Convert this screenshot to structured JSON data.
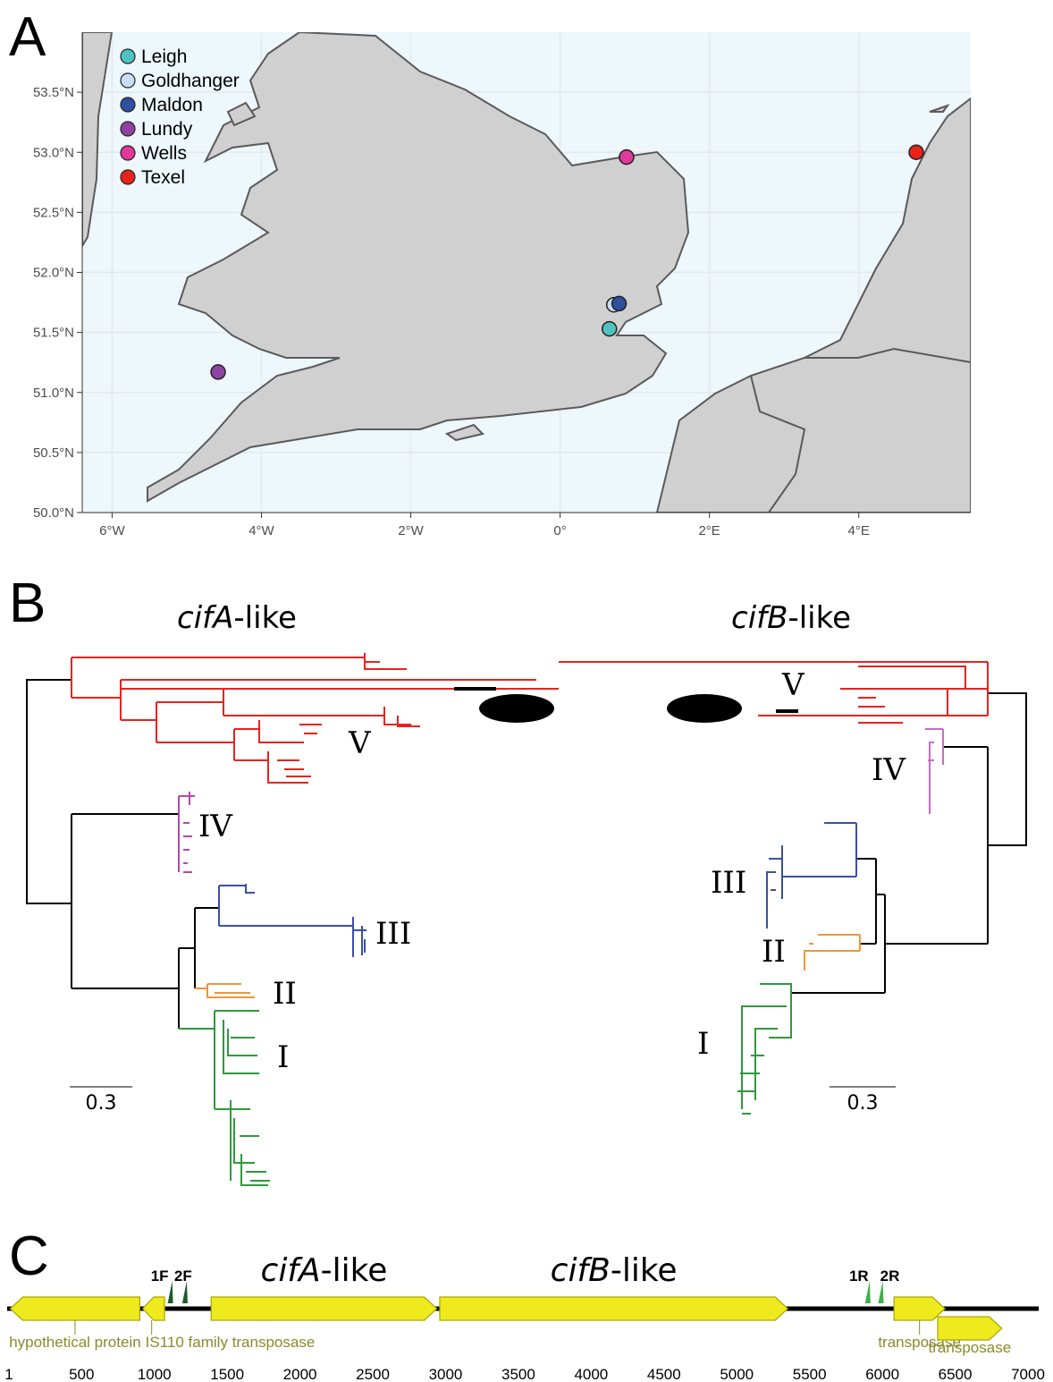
{
  "panel_a": {
    "label": "A",
    "xlim": [
      -6.4,
      5.5
    ],
    "ylim": [
      50,
      54
    ],
    "xticks": [
      {
        "value": -6,
        "label": "6°W"
      },
      {
        "value": -4,
        "label": "4°W"
      },
      {
        "value": -2,
        "label": "2°W"
      },
      {
        "value": 0,
        "label": "0°"
      },
      {
        "value": 2,
        "label": "2°E"
      },
      {
        "value": 4,
        "label": "4°E"
      }
    ],
    "yticks": [
      {
        "value": 50,
        "label": "50.0°N"
      },
      {
        "value": 50.5,
        "label": "50.5°N"
      },
      {
        "value": 51,
        "label": "51.0°N"
      },
      {
        "value": 51.5,
        "label": "51.5°N"
      },
      {
        "value": 52,
        "label": "52.0°N"
      },
      {
        "value": 52.5,
        "label": "52.5°N"
      },
      {
        "value": 53,
        "label": "53.0°N"
      },
      {
        "value": 53.5,
        "label": "53.5°N"
      }
    ],
    "sites": [
      {
        "name": "Leigh",
        "color": "#4fc3c0",
        "lon": 0.66,
        "lat": 51.53
      },
      {
        "name": "Goldhanger",
        "color": "#c9def2",
        "lon": 0.72,
        "lat": 51.73
      },
      {
        "name": "Maldon",
        "color": "#2f4f9f",
        "lon": 0.79,
        "lat": 51.74
      },
      {
        "name": "Lundy",
        "color": "#8e44a0",
        "lon": -4.58,
        "lat": 51.17
      },
      {
        "name": "Wells",
        "color": "#e0399a",
        "lon": 0.89,
        "lat": 52.96
      },
      {
        "name": "Texel",
        "color": "#e8231c",
        "lon": 4.77,
        "lat": 53.0
      }
    ]
  },
  "panel_b": {
    "label": "B",
    "left": {
      "gene": "cifA",
      "suffix": "-like",
      "clades": [
        "V",
        "IV",
        "III",
        "II",
        "I"
      ],
      "scale": "0.3"
    },
    "right": {
      "gene": "cifB",
      "suffix": "-like",
      "clades": [
        "V",
        "IV",
        "III",
        "II",
        "I"
      ],
      "scale": "0.3"
    }
  },
  "panel_c": {
    "label": "C",
    "xlim": [
      1,
      7000
    ],
    "xticks": [
      1,
      500,
      1000,
      1500,
      2000,
      2500,
      3000,
      3500,
      4000,
      4500,
      5000,
      5500,
      6000,
      6500,
      7000
    ],
    "genes": [
      {
        "start": 10,
        "end": 900,
        "strand": -1,
        "label": "hypothetical protein"
      },
      {
        "start": 920,
        "end": 1070,
        "strand": -1,
        "label": "IS110 family transposase"
      },
      {
        "start": 1390,
        "end": 2940,
        "strand": 1,
        "title": "cifA",
        "suffix": "-like"
      },
      {
        "start": 2960,
        "end": 5350,
        "strand": 1,
        "title": "cifB",
        "suffix": "-like"
      },
      {
        "start": 6080,
        "end": 6430,
        "strand": 1,
        "label": "transposase"
      },
      {
        "start": 6380,
        "end": 6820,
        "strand": 1,
        "label": "transposase"
      }
    ],
    "primers": [
      {
        "name": "1F",
        "position": 1110
      },
      {
        "name": "2F",
        "position": 1210
      },
      {
        "name": "1R",
        "position": 5900
      },
      {
        "name": "2R",
        "position": 5990
      }
    ]
  }
}
